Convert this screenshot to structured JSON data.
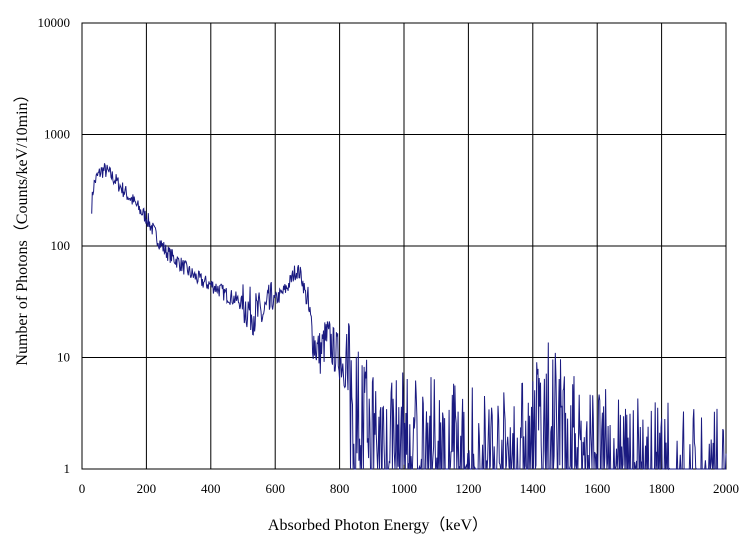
{
  "chart_data": {
    "type": "line",
    "title": "",
    "xlabel": "Absorbed Photon Energy（keV）",
    "ylabel": "Number of Photons（Counts/keV/10min）",
    "xlim": [
      0,
      2000
    ],
    "ylim": [
      1,
      10000
    ],
    "y_scale": "log",
    "grid": true,
    "legend": "none",
    "x_ticks": [
      "0",
      "200",
      "400",
      "600",
      "800",
      "1000",
      "1200",
      "1400",
      "1600",
      "1800",
      "2000"
    ],
    "y_ticks": [
      "1",
      "10",
      "100",
      "1000",
      "10000"
    ],
    "colors": {
      "series": "#1a1a80",
      "grid": "#000000",
      "axis": "#000000"
    },
    "series": [
      {
        "x": [
          30,
          35,
          40,
          50,
          60,
          70,
          80,
          90,
          100,
          120,
          140,
          160,
          180,
          200,
          220,
          240,
          260,
          280,
          300,
          320,
          340,
          360,
          380,
          400,
          420,
          440,
          460,
          480,
          500,
          520,
          540,
          560,
          580,
          600,
          620,
          640,
          650,
          660,
          670,
          680,
          690,
          700,
          710,
          720,
          730,
          740,
          750,
          760,
          770,
          780,
          790,
          800,
          810,
          820,
          830,
          840,
          850,
          860,
          870,
          880,
          900,
          920,
          940,
          960,
          980,
          1000,
          1050,
          1100,
          1150,
          1200,
          1250,
          1300,
          1350,
          1400,
          1420,
          1440,
          1460,
          1480,
          1500,
          1520,
          1550,
          1600,
          1650,
          1700,
          1750,
          1800,
          1850,
          1900,
          1950,
          2000
        ],
        "y": [
          230,
          330,
          380,
          430,
          470,
          480,
          460,
          430,
          400,
          340,
          290,
          250,
          210,
          180,
          140,
          110,
          90,
          80,
          72,
          63,
          56,
          51,
          47,
          45,
          42,
          38,
          35,
          33,
          30,
          27,
          25,
          24,
          28,
          33,
          37,
          44,
          50,
          58,
          60,
          55,
          42,
          30,
          20,
          14,
          12,
          11,
          13,
          15,
          14,
          12,
          11,
          10,
          9,
          8,
          6,
          5,
          4.5,
          4,
          3.5,
          3,
          2.8,
          2.6,
          2.5,
          2.4,
          2.3,
          2.2,
          2.0,
          1.9,
          1.8,
          1.7,
          1.6,
          1.5,
          1.6,
          2.5,
          3.5,
          4.0,
          4.2,
          3.8,
          3.0,
          2.2,
          1.8,
          1.6,
          1.5,
          1.4,
          1.3,
          1.2,
          1.15,
          1.1,
          1.05,
          1.0
        ]
      }
    ]
  }
}
